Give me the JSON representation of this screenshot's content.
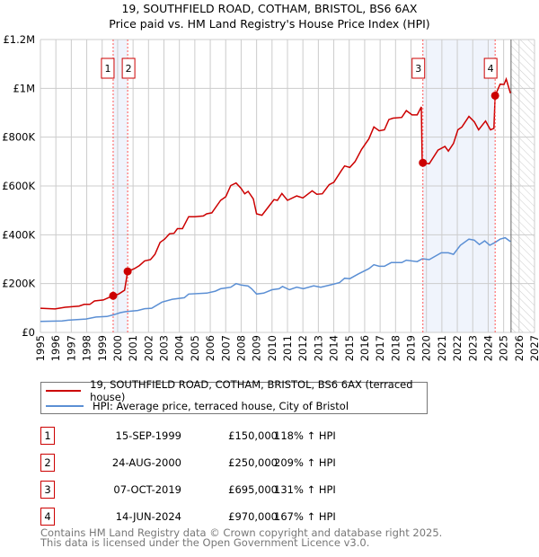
{
  "chart_data": {
    "type": "line",
    "title": "19, SOUTHFIELD ROAD, COTHAM, BRISTOL, BS6 6AX",
    "subtitle": "Price paid vs. HM Land Registry's House Price Index (HPI)",
    "xlim": [
      1995,
      2027
    ],
    "ylim": [
      0,
      1200000
    ],
    "x_ticks": [
      "1995",
      "1996",
      "1997",
      "1998",
      "1999",
      "2000",
      "2001",
      "2002",
      "2003",
      "2004",
      "2005",
      "2006",
      "2007",
      "2008",
      "2009",
      "2010",
      "2011",
      "2012",
      "2013",
      "2014",
      "2015",
      "2016",
      "2017",
      "2018",
      "2019",
      "2020",
      "2021",
      "2022",
      "2023",
      "2024",
      "2025",
      "2026",
      "2027"
    ],
    "y_ticks": [
      {
        "v": 0,
        "label": "£0"
      },
      {
        "v": 200000,
        "label": "£200K"
      },
      {
        "v": 400000,
        "label": "£400K"
      },
      {
        "v": 600000,
        "label": "£600K"
      },
      {
        "v": 800000,
        "label": "£800K"
      },
      {
        "v": 1000000,
        "label": "£1M"
      },
      {
        "v": 1200000,
        "label": "£1.2M"
      }
    ],
    "grid": true,
    "forecast_from": 2025.48,
    "shaded_ranges": [
      [
        1999.71,
        2000.65
      ],
      [
        2019.77,
        2024.45
      ]
    ],
    "series": [
      {
        "name": "19, SOUTHFIELD ROAD, COTHAM, BRISTOL, BS6 6AX (terraced house)",
        "color": "#cc0000",
        "x": [
          1995.0,
          1995.94,
          1996.6,
          1997.5,
          1997.84,
          1998.2,
          1998.5,
          1999.07,
          1999.4,
          1999.71,
          2000.07,
          2000.45,
          2000.65,
          2001.08,
          2001.41,
          2001.75,
          2002.13,
          2002.42,
          2002.75,
          2003.04,
          2003.36,
          2003.65,
          2003.87,
          2004.2,
          2004.6,
          2005.0,
          2005.55,
          2005.77,
          2006.1,
          2006.67,
          2007.0,
          2007.33,
          2007.67,
          2008.0,
          2008.23,
          2008.45,
          2008.79,
          2009.0,
          2009.35,
          2009.8,
          2010.13,
          2010.35,
          2010.64,
          2011.0,
          2011.6,
          2012.0,
          2012.6,
          2012.9,
          2013.26,
          2013.7,
          2014.0,
          2014.5,
          2014.7,
          2015.04,
          2015.38,
          2015.8,
          2016.27,
          2016.6,
          2016.94,
          2017.28,
          2017.57,
          2017.84,
          2018.4,
          2018.7,
          2019.07,
          2019.4,
          2019.67,
          2019.72,
          2019.77,
          2020.18,
          2020.75,
          2021.2,
          2021.42,
          2021.75,
          2022.04,
          2022.3,
          2022.75,
          2023.1,
          2023.38,
          2023.83,
          2024.15,
          2024.37,
          2024.45,
          2024.77,
          2025.03,
          2025.17,
          2025.44
        ],
        "y": [
          99000,
          96000,
          103000,
          108000,
          115000,
          115000,
          129000,
          133000,
          142000,
          150000,
          157000,
          173000,
          250000,
          261000,
          274000,
          293000,
          298000,
          320000,
          369000,
          382000,
          404000,
          406000,
          425000,
          425000,
          474000,
          474000,
          477000,
          486000,
          490000,
          541000,
          556000,
          602000,
          612000,
          590000,
          568000,
          578000,
          547000,
          486000,
          480000,
          517000,
          544000,
          541000,
          569000,
          541000,
          559000,
          551000,
          580000,
          566000,
          568000,
          605000,
          615000,
          664000,
          682000,
          676000,
          700000,
          750000,
          793000,
          842000,
          826000,
          830000,
          872000,
          878000,
          881000,
          909000,
          891000,
          891000,
          924000,
          713000,
          695000,
          691000,
          747000,
          762000,
          743000,
          774000,
          830000,
          842000,
          885000,
          863000,
          830000,
          866000,
          830000,
          836000,
          970000,
          1017000,
          1016000,
          1038000,
          980000
        ]
      },
      {
        "name": "HPI: Average price, terraced house, City of Bristol",
        "color": "#5b8fd4",
        "x": [
          1995,
          1996.4,
          1996.8,
          1997.95,
          1998.6,
          1999.3,
          1999.74,
          2000.18,
          2000.52,
          2001.3,
          2001.75,
          2002.2,
          2002.87,
          2003.54,
          2004.32,
          2004.6,
          2005.77,
          2006.33,
          2006.67,
          2007.33,
          2007.67,
          2008.0,
          2008.45,
          2008.68,
          2009.0,
          2009.46,
          2010.0,
          2010.46,
          2010.68,
          2011.13,
          2011.6,
          2012.03,
          2012.7,
          2013.15,
          2013.82,
          2014.37,
          2014.7,
          2015.04,
          2015.6,
          2016.27,
          2016.6,
          2016.94,
          2017.28,
          2017.72,
          2018.4,
          2018.7,
          2019.4,
          2019.74,
          2020.18,
          2020.96,
          2021.42,
          2021.75,
          2022.2,
          2022.75,
          2023.1,
          2023.43,
          2023.77,
          2024.1,
          2024.45,
          2024.77,
          2025.1,
          2025.44
        ],
        "y": [
          45000,
          47000,
          50000,
          55000,
          63000,
          65000,
          72000,
          81000,
          85000,
          90000,
          97000,
          99000,
          124000,
          136000,
          142000,
          157000,
          161000,
          169000,
          179000,
          185000,
          200000,
          194000,
          190000,
          179000,
          157000,
          161000,
          175000,
          179000,
          188000,
          175000,
          185000,
          179000,
          191000,
          185000,
          195000,
          204000,
          222000,
          220000,
          240000,
          261000,
          277000,
          271000,
          271000,
          286000,
          286000,
          296000,
          290000,
          302000,
          298000,
          326000,
          326000,
          320000,
          357000,
          382000,
          378000,
          360000,
          375000,
          357000,
          369000,
          382000,
          388000,
          372000
        ]
      }
    ],
    "sales": [
      {
        "n": "1",
        "x": 1999.71,
        "y": 150000,
        "date": "15-SEP-1999",
        "price": "£150,000",
        "hpi": "118% ↑ HPI"
      },
      {
        "n": "2",
        "x": 2000.65,
        "y": 250000,
        "date": "24-AUG-2000",
        "price": "£250,000",
        "hpi": "209% ↑ HPI"
      },
      {
        "n": "3",
        "x": 2019.77,
        "y": 695000,
        "date": "07-OCT-2019",
        "price": "£695,000",
        "hpi": "131% ↑ HPI"
      },
      {
        "n": "4",
        "x": 2024.45,
        "y": 970000,
        "date": "14-JUN-2024",
        "price": "£970,000",
        "hpi": "167% ↑ HPI"
      }
    ]
  },
  "footer": {
    "line1": "Contains HM Land Registry data © Crown copyright and database right 2025.",
    "line2": "This data is licensed under the Open Government Licence v3.0."
  }
}
